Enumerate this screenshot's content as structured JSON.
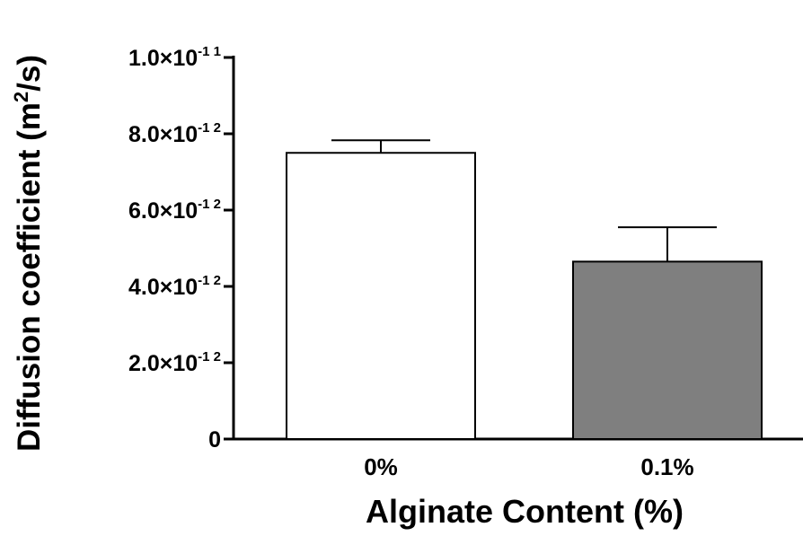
{
  "chart_data": {
    "type": "bar",
    "title": "",
    "xlabel": "Alginate Content (%)",
    "ylabel": {
      "main": "Diffusion coefficient (m",
      "superscript": "2",
      "suffix": "/s)"
    },
    "categories": [
      "0%",
      "0.1%"
    ],
    "values": [
      7.5e-12,
      4.65e-12
    ],
    "error_plus": [
      3.3e-13,
      9e-13
    ],
    "bar_colors": [
      "#ffffff",
      "#7f7f7f"
    ],
    "bar_edge_color": "#000000",
    "ylim": [
      0,
      1e-11
    ],
    "yticks": [
      {
        "value": 0,
        "mantissa": "0",
        "exponent": ""
      },
      {
        "value": 2e-12,
        "mantissa": "2.0×10",
        "exponent": "-1 2"
      },
      {
        "value": 4e-12,
        "mantissa": "4.0×10",
        "exponent": "-1 2"
      },
      {
        "value": 6e-12,
        "mantissa": "6.0×10",
        "exponent": "-1 2"
      },
      {
        "value": 8e-12,
        "mantissa": "8.0×10",
        "exponent": "-1 2"
      },
      {
        "value": 1e-11,
        "mantissa": "1.0×10",
        "exponent": "-1 1"
      }
    ],
    "grid": false,
    "legend": "none"
  }
}
